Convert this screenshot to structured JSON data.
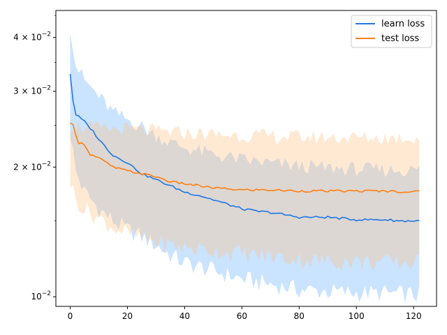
{
  "chart_data": {
    "type": "line",
    "title": "",
    "xlabel": "",
    "ylabel": "",
    "xlim": [
      -5,
      128
    ],
    "ylim": [
      0.0095,
      0.0462
    ],
    "yscale": "log",
    "grid": false,
    "legend_position": "top-right",
    "x_ticks": [
      0,
      20,
      40,
      60,
      80,
      100,
      120
    ],
    "x_tick_labels": [
      "0",
      "20",
      "40",
      "60",
      "80",
      "100",
      "120"
    ],
    "y_ticks": [
      0.01,
      0.02,
      0.03,
      0.04
    ],
    "y_tick_labels": [
      {
        "mant": "10",
        "exp": "−2"
      },
      {
        "mant": "2 × 10",
        "exp": "−2"
      },
      {
        "mant": "3 × 10",
        "exp": "−2"
      },
      {
        "mant": "4 × 10",
        "exp": "−2"
      }
    ],
    "series": [
      {
        "name": "learn loss",
        "color": "#1f77e6",
        "band_color": "#66b0ff",
        "mean": [
          [
            0,
            0.033
          ],
          [
            1,
            0.0285
          ],
          [
            2,
            0.0265
          ],
          [
            5,
            0.0255
          ],
          [
            8,
            0.0242
          ],
          [
            10,
            0.0232
          ],
          [
            15,
            0.0213
          ],
          [
            20,
            0.0205
          ],
          [
            25,
            0.0193
          ],
          [
            30,
            0.0187
          ],
          [
            35,
            0.0181
          ],
          [
            40,
            0.0175
          ],
          [
            45,
            0.0172
          ],
          [
            50,
            0.0168
          ],
          [
            55,
            0.0164
          ],
          [
            60,
            0.016
          ],
          [
            65,
            0.0158
          ],
          [
            70,
            0.0157
          ],
          [
            75,
            0.0155
          ],
          [
            80,
            0.0153
          ],
          [
            85,
            0.0153
          ],
          [
            90,
            0.0153
          ],
          [
            95,
            0.0152
          ],
          [
            100,
            0.0151
          ],
          [
            105,
            0.0151
          ],
          [
            110,
            0.0151
          ],
          [
            115,
            0.015
          ],
          [
            120,
            0.015
          ],
          [
            122,
            0.015
          ]
        ],
        "lower": [
          [
            0,
            0.024
          ],
          [
            2,
            0.0195
          ],
          [
            5,
            0.0175
          ],
          [
            10,
            0.016
          ],
          [
            15,
            0.015
          ],
          [
            20,
            0.0143
          ],
          [
            25,
            0.0138
          ],
          [
            30,
            0.0132
          ],
          [
            35,
            0.0125
          ],
          [
            40,
            0.012
          ],
          [
            50,
            0.0115
          ],
          [
            60,
            0.011
          ],
          [
            70,
            0.0107
          ],
          [
            80,
            0.0104
          ],
          [
            90,
            0.0103
          ],
          [
            100,
            0.0102
          ],
          [
            110,
            0.0102
          ],
          [
            122,
            0.0101
          ]
        ],
        "upper": [
          [
            0,
            0.0425
          ],
          [
            2,
            0.0345
          ],
          [
            5,
            0.0318
          ],
          [
            10,
            0.0292
          ],
          [
            15,
            0.0268
          ],
          [
            20,
            0.0258
          ],
          [
            25,
            0.0248
          ],
          [
            30,
            0.0237
          ],
          [
            35,
            0.0228
          ],
          [
            40,
            0.0222
          ],
          [
            50,
            0.0214
          ],
          [
            60,
            0.0208
          ],
          [
            70,
            0.0204
          ],
          [
            80,
            0.0201
          ],
          [
            90,
            0.0199
          ],
          [
            100,
            0.0198
          ],
          [
            110,
            0.0197
          ],
          [
            122,
            0.0197
          ]
        ]
      },
      {
        "name": "test loss",
        "color": "#ff7f0e",
        "band_color": "#ffbf80",
        "mean": [
          [
            0,
            0.0252
          ],
          [
            1,
            0.025
          ],
          [
            2,
            0.0238
          ],
          [
            3,
            0.0228
          ],
          [
            5,
            0.0226
          ],
          [
            7,
            0.0214
          ],
          [
            10,
            0.021
          ],
          [
            15,
            0.02
          ],
          [
            20,
            0.0196
          ],
          [
            25,
            0.0193
          ],
          [
            30,
            0.019
          ],
          [
            35,
            0.0185
          ],
          [
            40,
            0.0183
          ],
          [
            45,
            0.0181
          ],
          [
            50,
            0.0179
          ],
          [
            55,
            0.0178
          ],
          [
            60,
            0.0177
          ],
          [
            70,
            0.0177
          ],
          [
            80,
            0.0176
          ],
          [
            90,
            0.0176
          ],
          [
            100,
            0.0176
          ],
          [
            110,
            0.0176
          ],
          [
            120,
            0.0175
          ],
          [
            122,
            0.0176
          ]
        ],
        "lower": [
          [
            0,
            0.0185
          ],
          [
            2,
            0.0168
          ],
          [
            5,
            0.016
          ],
          [
            10,
            0.0152
          ],
          [
            15,
            0.0145
          ],
          [
            20,
            0.014
          ],
          [
            25,
            0.0137
          ],
          [
            30,
            0.0134
          ],
          [
            40,
            0.013
          ],
          [
            50,
            0.0128
          ],
          [
            60,
            0.0126
          ],
          [
            70,
            0.0124
          ],
          [
            80,
            0.0122
          ],
          [
            90,
            0.0121
          ],
          [
            100,
            0.0121
          ],
          [
            110,
            0.012
          ],
          [
            122,
            0.012
          ]
        ],
        "upper": [
          [
            0,
            0.025
          ],
          [
            5,
            0.0248
          ],
          [
            10,
            0.0246
          ],
          [
            15,
            0.0245
          ],
          [
            20,
            0.0245
          ],
          [
            25,
            0.0244
          ],
          [
            30,
            0.0242
          ],
          [
            40,
            0.024
          ],
          [
            50,
            0.0238
          ],
          [
            60,
            0.0237
          ],
          [
            70,
            0.0236
          ],
          [
            80,
            0.0235
          ],
          [
            90,
            0.0235
          ],
          [
            100,
            0.0234
          ],
          [
            110,
            0.0234
          ],
          [
            122,
            0.0234
          ]
        ]
      }
    ]
  }
}
